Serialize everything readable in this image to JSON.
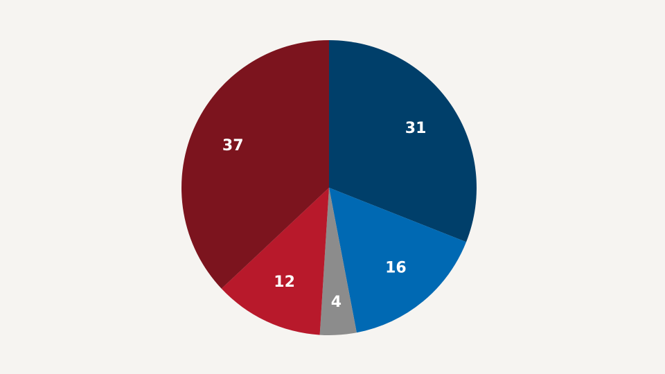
{
  "chart_data": {
    "type": "pie",
    "values": [
      31,
      16,
      4,
      12,
      37
    ],
    "colors": [
      "#003f6a",
      "#0069b3",
      "#8c8c8c",
      "#b8192b",
      "#7c141e"
    ],
    "start_angle": 0,
    "direction": "clockwise"
  }
}
